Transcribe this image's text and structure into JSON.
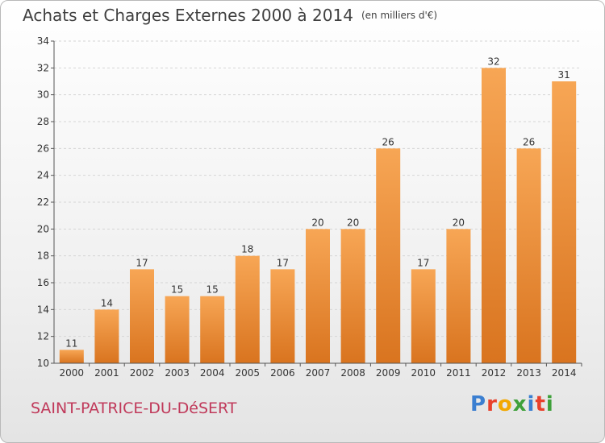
{
  "title": "Achats et Charges Externes 2000 à 2014",
  "unit": "(en milliers d'€)",
  "commune": "SAINT-PATRICE-DU-DéSERT",
  "brand": {
    "letters": [
      "P",
      "r",
      "o",
      "x",
      "i",
      "t",
      "i"
    ],
    "colors": [
      "#3b7fd1",
      "#e8412c",
      "#f2a800",
      "#3ea03a",
      "#3b7fd1",
      "#e8412c",
      "#3ea03a"
    ]
  },
  "chart_data": {
    "type": "bar",
    "categories": [
      "2000",
      "2001",
      "2002",
      "2003",
      "2004",
      "2005",
      "2006",
      "2007",
      "2008",
      "2009",
      "2010",
      "2011",
      "2012",
      "2013",
      "2014"
    ],
    "values": [
      11,
      14,
      17,
      15,
      15,
      18,
      17,
      20,
      20,
      26,
      17,
      20,
      32,
      26,
      31
    ],
    "yticks": [
      10,
      12,
      14,
      16,
      18,
      20,
      22,
      24,
      26,
      28,
      30,
      32,
      34
    ],
    "ylim": [
      10,
      34
    ],
    "grid": true,
    "xlabel": "",
    "ylabel": "",
    "colors": {
      "bar_top": "#f7a655",
      "bar_bottom": "#d9741f",
      "axis": "#555555",
      "grid": "#d5d5d5",
      "text": "#333333"
    }
  }
}
